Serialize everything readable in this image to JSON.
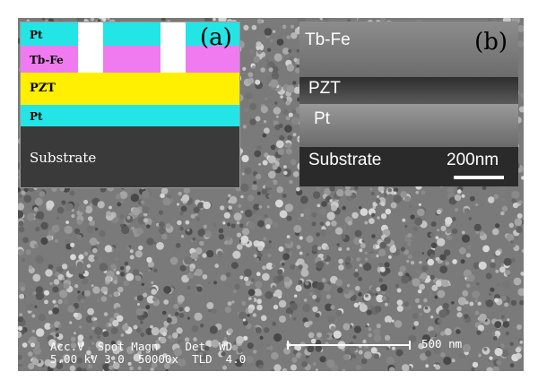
{
  "inset_a": {
    "panel_label": "(a)",
    "layers": {
      "pt_top": "Pt",
      "tbfe": "Tb-Fe",
      "pzt": "PZT",
      "pt_bottom": "Pt",
      "substrate": "Substrate"
    },
    "colors": {
      "pt": "#23e5e5",
      "tbfe": "#f07af0",
      "pzt": "#ffef00",
      "substrate": "#3a3a3a"
    }
  },
  "inset_b": {
    "panel_label": "(b)",
    "layers": {
      "tbfe": "Tb-Fe",
      "pzt": "PZT",
      "pt": "Pt",
      "substrate": "Substrate"
    },
    "scale_label": "200nm"
  },
  "sem_info": {
    "line1": "Acc.V  Spot Magn    Det  WD",
    "line2": "5.00 kV 3.0  50000x  TLD  4.0",
    "scale_label": "500 nm"
  }
}
